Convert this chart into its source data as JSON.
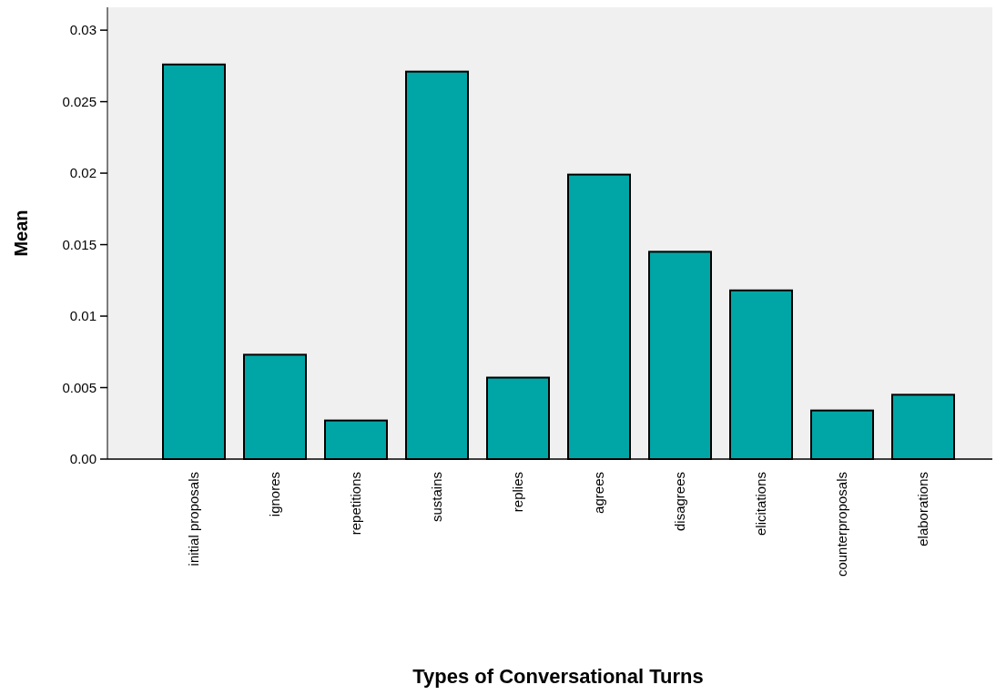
{
  "chart_data": {
    "type": "bar",
    "xlabel": "Types of Conversational Turns",
    "ylabel": "Mean",
    "categories": [
      "initial proposals",
      "ignores",
      "repetitions",
      "sustains",
      "replies",
      "agrees",
      "disagrees",
      "elicitations",
      "counterproposals",
      "elaborations"
    ],
    "values": [
      0.0276,
      0.0073,
      0.0027,
      0.0271,
      0.0057,
      0.0199,
      0.0145,
      0.0118,
      0.0034,
      0.0045
    ],
    "color": "#00a6a6",
    "ylim": [
      0,
      0.0316
    ],
    "yticks": [
      {
        "value": 0,
        "label": "0.00"
      },
      0.005,
      0.01,
      0.015,
      0.02,
      0.025,
      0.03
    ],
    "grid": false
  }
}
